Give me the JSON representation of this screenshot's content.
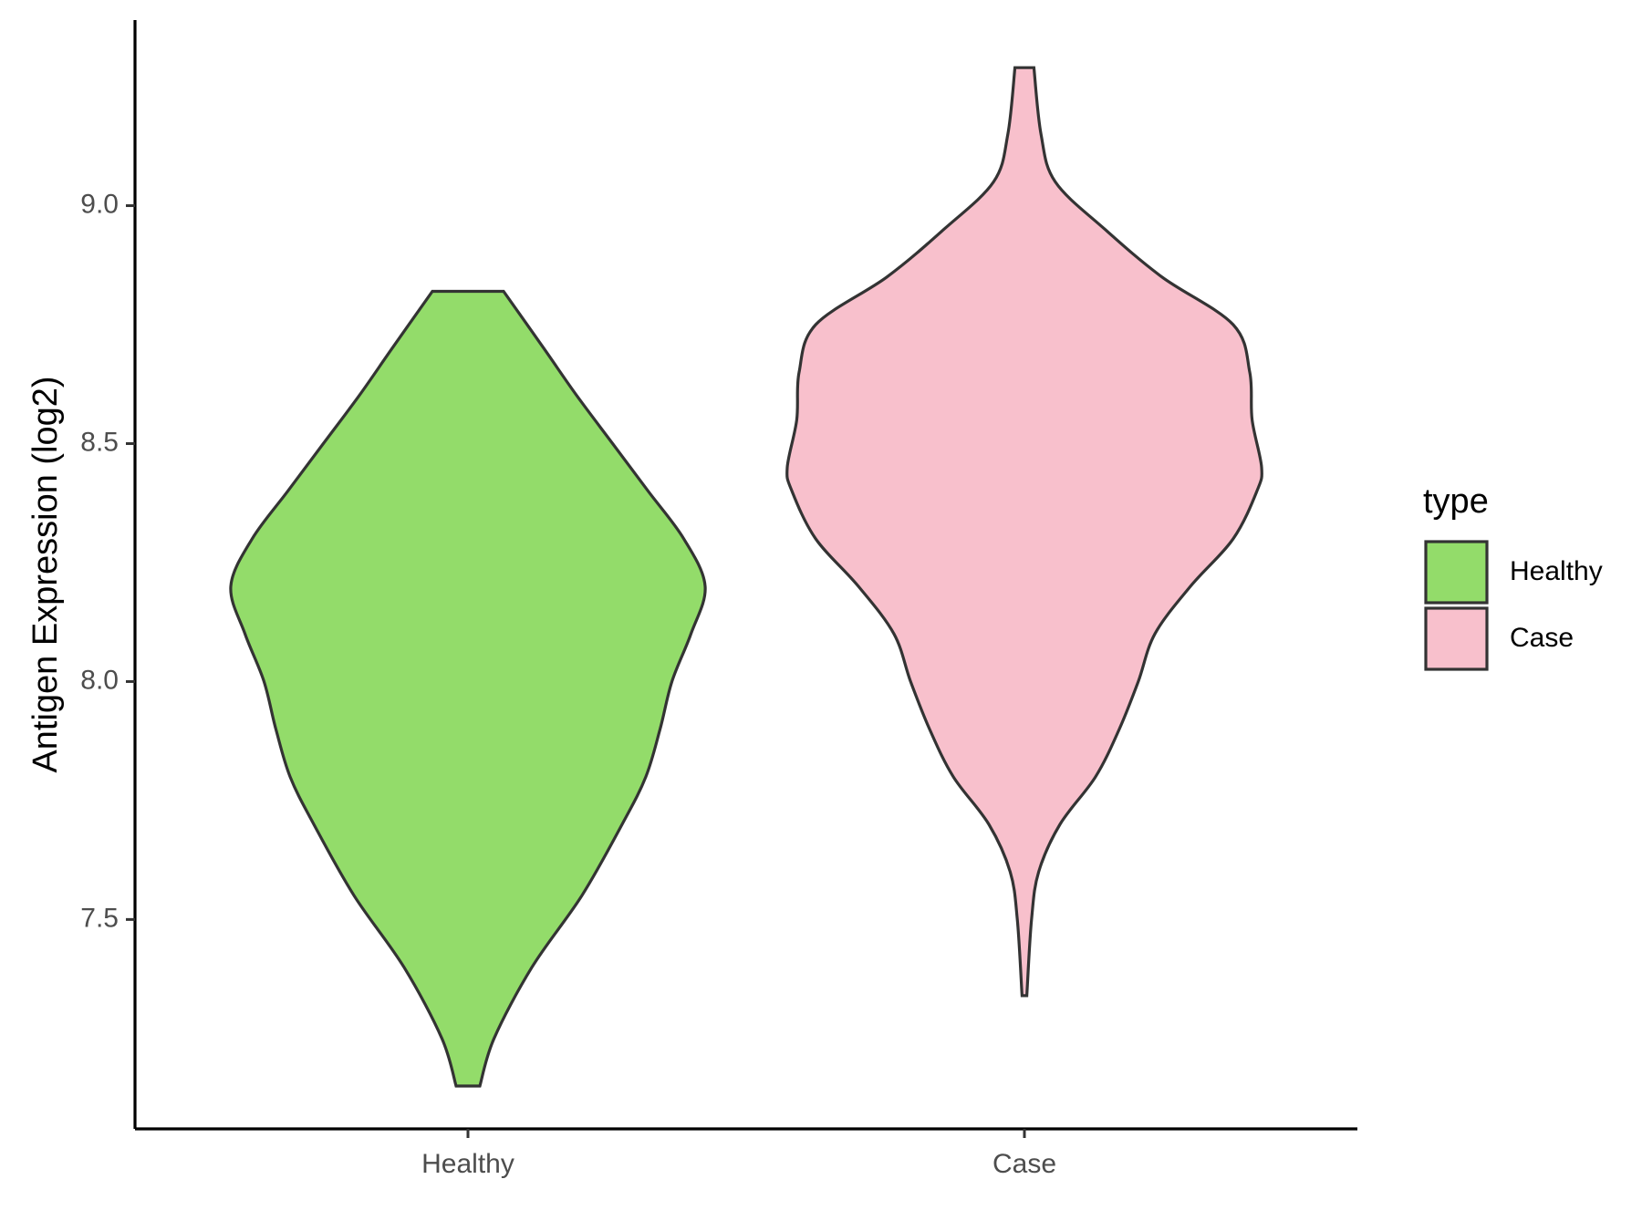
{
  "chart_data": {
    "type": "violin",
    "categories": [
      "Healthy",
      "Case"
    ],
    "ylabel": "Antigen Expression (log2)",
    "xlabel": "",
    "ylim": [
      7.06,
      9.39
    ],
    "yticks": [
      7.5,
      8.0,
      8.5,
      9.0
    ],
    "ytick_labels": [
      "7.5",
      "8.0",
      "8.5",
      "9.0"
    ],
    "legend": {
      "title": "type",
      "position": "right",
      "entries": [
        {
          "label": "Healthy",
          "color": "#93dc6a"
        },
        {
          "label": "Case",
          "color": "#f8c0cc"
        }
      ]
    },
    "series": [
      {
        "category": "Healthy",
        "color": "#93dc6a",
        "min": 7.15,
        "max": 8.82,
        "density": [
          [
            7.15,
            0.05
          ],
          [
            7.25,
            0.11
          ],
          [
            7.4,
            0.27
          ],
          [
            7.55,
            0.48
          ],
          [
            7.7,
            0.65
          ],
          [
            7.8,
            0.75
          ],
          [
            7.9,
            0.81
          ],
          [
            8.0,
            0.86
          ],
          [
            8.1,
            0.94
          ],
          [
            8.2,
            1.0
          ],
          [
            8.3,
            0.91
          ],
          [
            8.4,
            0.76
          ],
          [
            8.5,
            0.61
          ],
          [
            8.6,
            0.46
          ],
          [
            8.7,
            0.32
          ],
          [
            8.82,
            0.15
          ]
        ]
      },
      {
        "category": "Case",
        "color": "#f8c0cc",
        "min": 7.34,
        "max": 9.29,
        "density": [
          [
            7.34,
            0.01
          ],
          [
            7.5,
            0.03
          ],
          [
            7.6,
            0.06
          ],
          [
            7.7,
            0.15
          ],
          [
            7.8,
            0.3
          ],
          [
            7.9,
            0.4
          ],
          [
            8.0,
            0.48
          ],
          [
            8.1,
            0.55
          ],
          [
            8.2,
            0.7
          ],
          [
            8.3,
            0.88
          ],
          [
            8.4,
            0.98
          ],
          [
            8.45,
            1.0
          ],
          [
            8.55,
            0.96
          ],
          [
            8.65,
            0.95
          ],
          [
            8.75,
            0.88
          ],
          [
            8.85,
            0.58
          ],
          [
            8.95,
            0.34
          ],
          [
            9.05,
            0.13
          ],
          [
            9.15,
            0.07
          ],
          [
            9.29,
            0.04
          ]
        ]
      }
    ]
  }
}
